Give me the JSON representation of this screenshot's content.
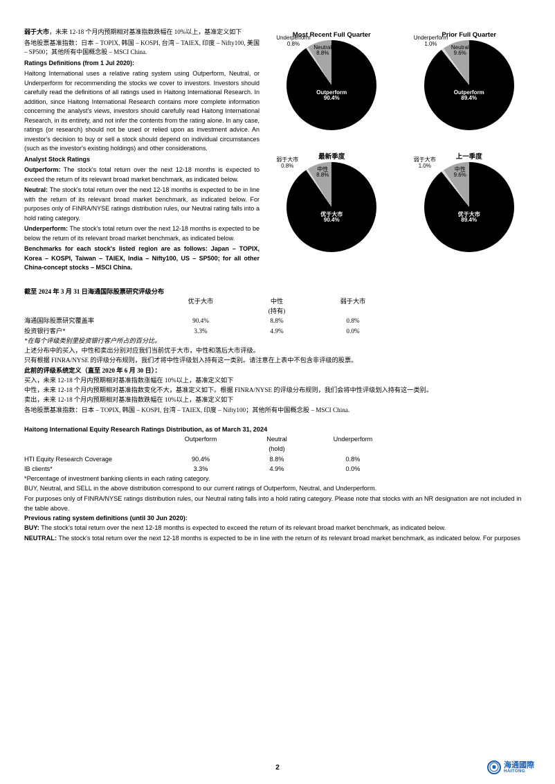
{
  "left": {
    "p1_cn_bold": "弱于大市",
    "p1_cn_rest": "，未来 12-18 个月内预期相对基准指数跌幅在 10%以上，基准定义如下",
    "p2_cn": "各地股票基准指数：日本 – TOPIX, 韩国 – KOSPI, 台湾 – TAIEX, 印度 – Nifty100, 美国 – SP500；其他所有中国概念股 – MSCI China.",
    "h_ratings_def": "Ratings Definitions (from 1 Jul 2020):",
    "p_ratings_def": "Haitong International uses a relative rating system using Outperform, Neutral, or Underperform for recommending the stocks we cover to investors. Investors should carefully read the definitions of all ratings used in Haitong International Research. In addition, since Haitong International Research contains more complete information concerning the analyst's views, investors should carefully read Haitong International Research, in its entirety, and not infer the contents from the rating alone. In any case, ratings (or research) should not be used or relied upon as investment advice. An investor's decision to buy or sell a stock should depend on individual circumstances (such as the investor's existing holdings) and other considerations.",
    "h_analyst": "Analyst Stock Ratings",
    "h_outperform": "Outperform:",
    "p_outperform": " The stock's total return over the next 12-18 months is expected to exceed the return of its relevant broad market benchmark, as indicated below.",
    "h_neutral": "Neutral:",
    "p_neutral": " The stock's total return over the next 12-18 months is expected to be in line with the return of its relevant broad market benchmark, as indicated below. For purposes only of FINRA/NYSE ratings distribution rules, our Neutral rating falls into a hold rating category.",
    "h_underperform": "Underperform:",
    "p_underperform": " The stock's total return over the next 12-18 months is expected to be below the return of its relevant broad market benchmark, as indicated below.",
    "p_benchmarks": "Benchmarks for each stock's listed region are as follows: Japan – TOPIX, Korea – KOSPI, Taiwan – TAIEX, India – Nifty100, US – SP500; for all other China-concept stocks – MSCI China."
  },
  "charts": [
    {
      "title": "Most Recent Full Quarter",
      "outperform_pct": 90.4,
      "neutral_pct": 8.8,
      "underperform_pct": 0.8,
      "lbl_out": "Outperform\n90.4%",
      "lbl_neu": "Neutral\n8.8%",
      "lbl_und": "Underperform\n0.8%",
      "col_out": "#000000",
      "col_neu": "#a6a6a6",
      "col_und": "#d9d9d9"
    },
    {
      "title": "Prior Full Quarter",
      "outperform_pct": 89.4,
      "neutral_pct": 9.6,
      "underperform_pct": 1.0,
      "lbl_out": "Outperform\n89.4%",
      "lbl_neu": "Neutral\n9.6%",
      "lbl_und": "Underperform\n1.0%",
      "col_out": "#000000",
      "col_neu": "#a6a6a6",
      "col_und": "#d9d9d9"
    },
    {
      "title": "最新季度",
      "outperform_pct": 90.4,
      "neutral_pct": 8.8,
      "underperform_pct": 0.8,
      "lbl_out": "优于大市\n90.4%",
      "lbl_neu": "中性\n8.8%",
      "lbl_und": "弱于大市\n0.8%",
      "col_out": "#000000",
      "col_neu": "#a6a6a6",
      "col_und": "#d9d9d9"
    },
    {
      "title": "上一季度",
      "outperform_pct": 89.4,
      "neutral_pct": 9.6,
      "underperform_pct": 1.0,
      "lbl_out": "优于大市\n89.4%",
      "lbl_neu": "中性\n9.6%",
      "lbl_und": "弱于大市\n1.0%",
      "col_out": "#000000",
      "col_neu": "#a6a6a6",
      "col_und": "#d9d9d9"
    }
  ],
  "tables_cn": {
    "title": "截至 2024 年 3 月 31 日海通国际股票研究评级分布",
    "h1": "优于大市",
    "h2_a": "中性",
    "h2_b": "(持有)",
    "h3": "弱于大市",
    "r1_l": "海通国际股票研究覆盖率",
    "r1_a": "90.4%",
    "r1_b": "8.8%",
    "r1_c": "0.8%",
    "r2_l": "投资银行客户*",
    "r2_a": "3.3%",
    "r2_b": "4.9%",
    "r2_c": "0.0%",
    "note1": "*在每个评级类别里投资银行客户所占的百分比。",
    "note2": "上述分布中的买入，中性和卖出分别对应我们当前优于大市，中性和落后大市评级。",
    "note3": "只有根据 FINRA/NYSE 的评级分布规则，我们才将中性评级划入持有这一类别。请注意在上表中不包含非评级的股票。",
    "prev_h": "此前的评级系统定义（直至 2020 年 6 月 30 日）：",
    "prev_1": "买入，未来 12-18 个月内预期相对基准指数涨幅在 10%以上，基准定义如下",
    "prev_2": "中性，未来 12-18 个月内预期相对基准指数变化不大，基准定义如下。根据 FINRA/NYSE 的评级分布规则，我们会将中性评级划入持有这一类别。",
    "prev_3": "卖出，未来 12-18 个月内预期相对基准指数跌幅在 10%以上，基准定义如下",
    "prev_4": "各地股票基准指数：日本 – TOPIX, 韩国 – KOSPI, 台湾 – TAIEX, 印度 – Nifty100；其他所有中国概念股 – MSCI China."
  },
  "tables_en": {
    "title": "Haitong International Equity Research Ratings Distribution, as of March 31, 2024",
    "h1": "Outperform",
    "h2_a": "Neutral",
    "h2_b": "(hold)",
    "h3": "Underperform",
    "r1_l": "HTI Equity Research Coverage",
    "r1_a": "90.4%",
    "r1_b": "8.8%",
    "r1_c": "0.8%",
    "r2_l": "IB clients*",
    "r2_a": "3.3%",
    "r2_b": "4.9%",
    "r2_c": "0.0%",
    "note1": "*Percentage of investment banking clients in each rating category.",
    "note2": "BUY, Neutral, and SELL in the above distribution correspond to our current ratings of Outperform, Neutral, and Underperform.",
    "note3": "For purposes only of FINRA/NYSE ratings distribution rules, our Neutral rating falls into a hold rating category. Please note that stocks with an NR designation are not included in the table above.",
    "prev_h": "Previous rating system definitions (until 30 Jun 2020):",
    "buy_h": "BUY:",
    "buy_t": " The stock's total return over the next 12-18 months is expected to exceed the return of its relevant broad market benchmark, as indicated below.",
    "neu_h": "NEUTRAL:",
    "neu_t": " The stock's total return over the next 12-18 months is expected to be in line with the return of its relevant broad market benchmark, as indicated below. For purposes"
  },
  "page_num": "2",
  "logo": {
    "cn": "海通國際",
    "en": "HAITONG"
  }
}
